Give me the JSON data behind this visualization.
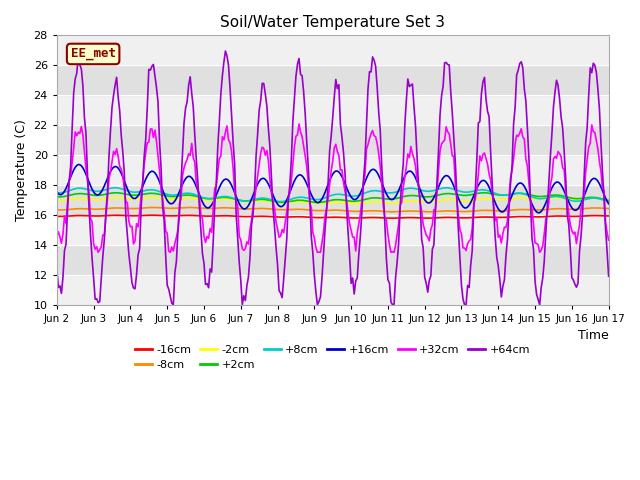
{
  "title": "Soil/Water Temperature Set 3",
  "xlabel": "Time",
  "ylabel": "Temperature (C)",
  "ylim": [
    10,
    28
  ],
  "yticks": [
    10,
    12,
    14,
    16,
    18,
    20,
    22,
    24,
    26,
    28
  ],
  "x_labels": [
    "Jun 2",
    "Jun 3",
    "Jun 4",
    "Jun 5",
    "Jun 6",
    "Jun 7",
    "Jun 8",
    "Jun 9",
    "Jun 10",
    "Jun 11",
    "Jun 12",
    "Jun 13",
    "Jun 14",
    "Jun 15",
    "Jun 16",
    "Jun 17"
  ],
  "watermark": "EE_met",
  "series_colors": [
    "#ff0000",
    "#ff8800",
    "#ffff00",
    "#00cc00",
    "#00cccc",
    "#0000cc",
    "#ff00ff",
    "#9900cc"
  ],
  "series_labels": [
    "-16cm",
    "-8cm",
    "-2cm",
    "+2cm",
    "+8cm",
    "+16cm",
    "+32cm",
    "+64cm"
  ],
  "band_light": "#e8e8e8",
  "band_dark": "#d4d4d4",
  "plot_facecolor": "#ffffff"
}
